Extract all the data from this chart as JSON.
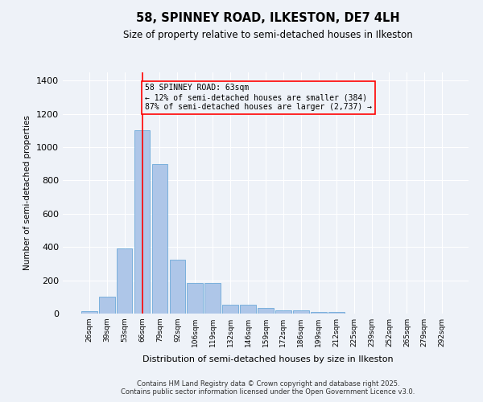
{
  "title": "58, SPINNEY ROAD, ILKESTON, DE7 4LH",
  "subtitle": "Size of property relative to semi-detached houses in Ilkeston",
  "xlabel": "Distribution of semi-detached houses by size in Ilkeston",
  "ylabel": "Number of semi-detached properties",
  "bar_labels": [
    "26sqm",
    "39sqm",
    "53sqm",
    "66sqm",
    "79sqm",
    "92sqm",
    "106sqm",
    "119sqm",
    "132sqm",
    "146sqm",
    "159sqm",
    "172sqm",
    "186sqm",
    "199sqm",
    "212sqm",
    "225sqm",
    "239sqm",
    "252sqm",
    "265sqm",
    "279sqm",
    "292sqm"
  ],
  "bar_values": [
    15,
    100,
    390,
    1100,
    900,
    325,
    185,
    185,
    55,
    55,
    35,
    20,
    20,
    10,
    10,
    0,
    0,
    0,
    0,
    0,
    0
  ],
  "bar_color": "#aec6e8",
  "bar_edge_color": "#5a9fd4",
  "bar_edge_width": 0.5,
  "red_line_index": 3,
  "annotation_text": "58 SPINNEY ROAD: 63sqm\n← 12% of semi-detached houses are smaller (384)\n87% of semi-detached houses are larger (2,737) →",
  "ylim": [
    0,
    1450
  ],
  "yticks": [
    0,
    200,
    400,
    600,
    800,
    1000,
    1200,
    1400
  ],
  "background_color": "#eef2f8",
  "grid_color": "#ffffff",
  "footer_line1": "Contains HM Land Registry data © Crown copyright and database right 2025.",
  "footer_line2": "Contains public sector information licensed under the Open Government Licence v3.0."
}
